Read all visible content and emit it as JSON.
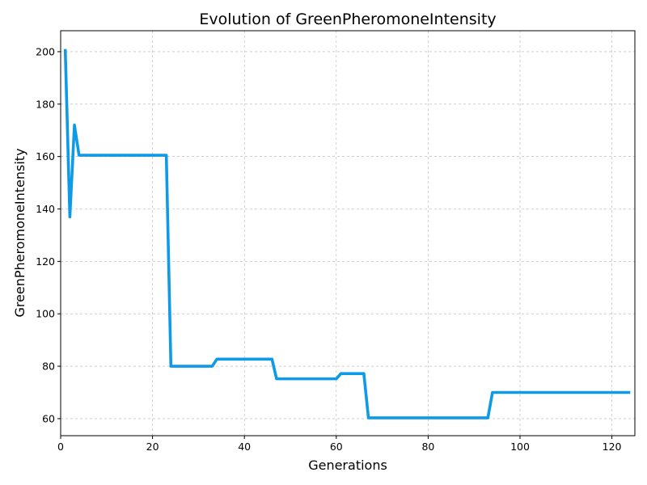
{
  "chart_data": {
    "type": "line",
    "title": "Evolution of GreenPheromoneIntensity",
    "xlabel": "Generations",
    "ylabel": "GreenPheromoneIntensity",
    "xlim": [
      0,
      125
    ],
    "ylim": [
      53.5,
      208
    ],
    "xticks": [
      0,
      20,
      40,
      60,
      80,
      100,
      120
    ],
    "yticks": [
      60,
      80,
      100,
      120,
      140,
      160,
      180,
      200
    ],
    "grid": true,
    "line_color": "#0f9ae8",
    "series": [
      {
        "x": [
          1,
          2,
          3,
          4,
          23,
          24,
          33,
          34,
          46,
          47,
          60,
          61,
          66,
          67,
          93,
          94,
          124
        ],
        "y": [
          201,
          137,
          172,
          160.5,
          160.5,
          80,
          80,
          82.7,
          82.7,
          75.2,
          75.2,
          77.2,
          77.2,
          60.3,
          60.3,
          70,
          70
        ]
      }
    ]
  }
}
